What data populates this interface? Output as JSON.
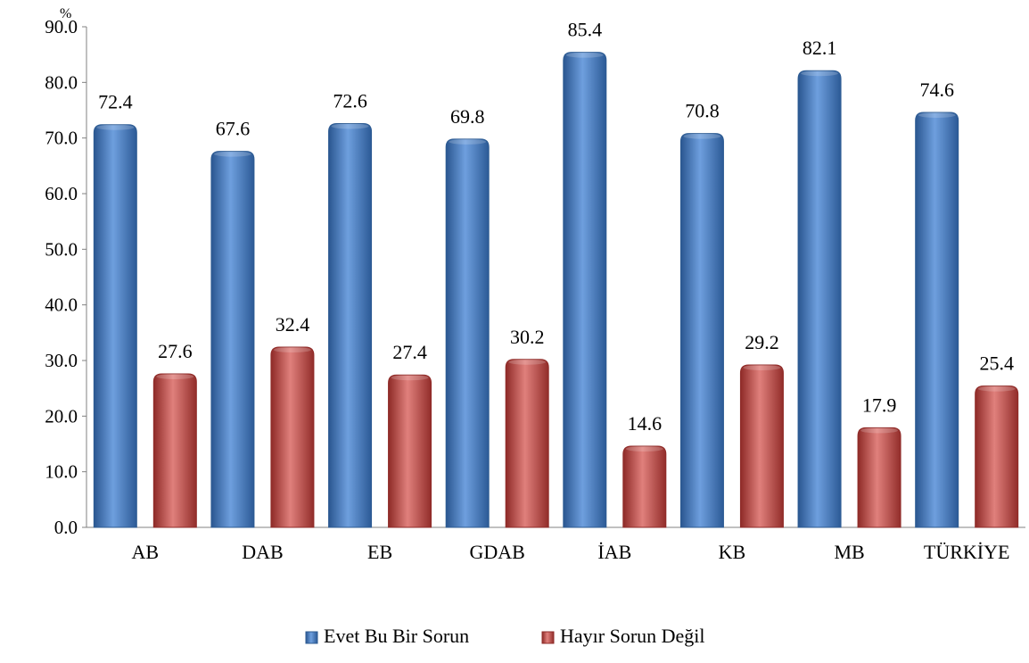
{
  "chart_data": {
    "type": "bar",
    "ylabel": "%",
    "ylim": [
      0,
      90
    ],
    "ytick_step": 10,
    "categories": [
      "AB",
      "DAB",
      "EB",
      "GDAB",
      "İAB",
      "KB",
      "MB",
      "TÜRKİYE"
    ],
    "series": [
      {
        "name": "Evet Bu Bir Sorun",
        "color": "#4f81bd",
        "values": [
          72.4,
          67.6,
          72.6,
          69.8,
          85.4,
          70.8,
          82.1,
          74.6
        ]
      },
      {
        "name": "Hayır Sorun Değil",
        "color": "#c0504d",
        "values": [
          27.6,
          32.4,
          27.4,
          30.2,
          14.6,
          29.2,
          17.9,
          25.4
        ]
      }
    ],
    "legend_position": "bottom",
    "grid": false,
    "value_labels": true
  }
}
